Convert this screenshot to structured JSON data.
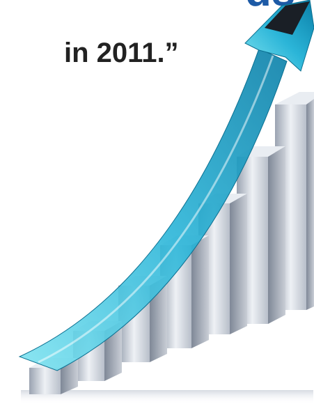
{
  "header": {
    "title_fragment": "ds",
    "quote_fragment": "in 2011.”"
  }
}
